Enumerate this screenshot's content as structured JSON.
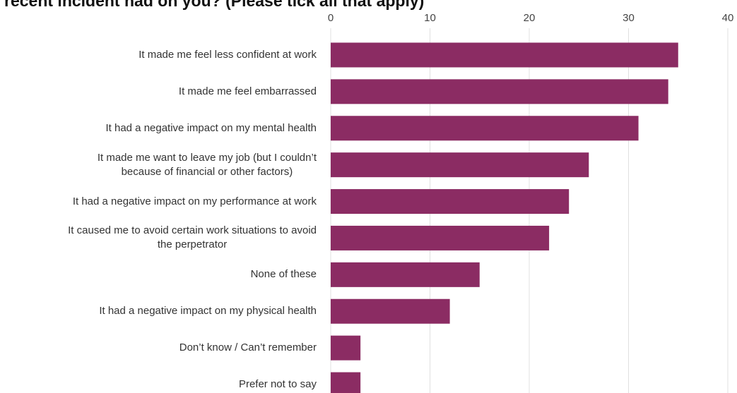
{
  "chart_data": {
    "type": "bar",
    "orientation": "horizontal",
    "title": "recent incident had on you? (Please tick all that apply)",
    "categories": [
      "It made me feel less confident at work",
      "It made me feel embarrassed",
      "It had a negative impact on my mental health",
      "It made me want to leave my job (but I couldn’t\nbecause of financial or other factors)",
      "It had a negative impact on my performance at work",
      "It caused me to avoid certain work situations to avoid\nthe perpetrator",
      "None of these",
      "It had a negative impact on my physical health",
      "Don’t know / Can’t remember",
      "Prefer not to say"
    ],
    "values": [
      35,
      34,
      31,
      26,
      24,
      22,
      15,
      12,
      3,
      3
    ],
    "color": "#8b2c63",
    "xlim": [
      0,
      40
    ],
    "xticks": [
      0,
      10,
      20,
      30,
      40
    ],
    "grid": true
  }
}
